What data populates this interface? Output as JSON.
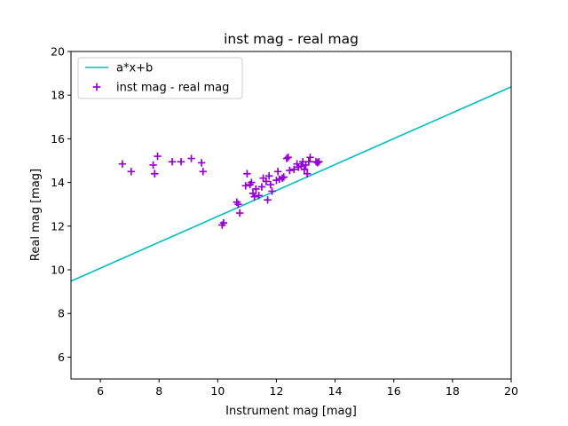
{
  "chart_data": {
    "type": "scatter",
    "title": "inst mag - real mag",
    "xlabel": "Instrument mag [mag]",
    "ylabel": "Real mag [mag]",
    "xlim": [
      5,
      20
    ],
    "ylim": [
      5,
      20
    ],
    "xticks": [
      "6",
      "8",
      "10",
      "12",
      "14",
      "16",
      "18",
      "20"
    ],
    "yticks": [
      "6",
      "8",
      "10",
      "12",
      "14",
      "16",
      "18",
      "20"
    ],
    "grid": false,
    "legend_position": "top-left",
    "fit_line": {
      "name": "a*x+b",
      "color": "#00bfbf",
      "x": [
        5,
        20
      ],
      "y": [
        9.48,
        18.38
      ]
    },
    "series": [
      {
        "name": "inst mag - real mag",
        "color": "#9400d3",
        "marker": "plus",
        "points": [
          [
            6.75,
            14.85
          ],
          [
            7.05,
            14.5
          ],
          [
            7.8,
            14.8
          ],
          [
            7.85,
            14.4
          ],
          [
            7.95,
            15.2
          ],
          [
            8.45,
            14.95
          ],
          [
            8.75,
            14.95
          ],
          [
            9.1,
            15.1
          ],
          [
            9.45,
            14.9
          ],
          [
            9.5,
            14.5
          ],
          [
            10.15,
            12.05
          ],
          [
            10.2,
            12.15
          ],
          [
            10.65,
            13.1
          ],
          [
            10.7,
            13.0
          ],
          [
            10.75,
            12.6
          ],
          [
            10.95,
            13.85
          ],
          [
            11.0,
            14.4
          ],
          [
            11.1,
            13.9
          ],
          [
            11.15,
            14.0
          ],
          [
            11.2,
            13.5
          ],
          [
            11.25,
            13.35
          ],
          [
            11.3,
            13.7
          ],
          [
            11.4,
            13.4
          ],
          [
            11.5,
            13.8
          ],
          [
            11.55,
            14.2
          ],
          [
            11.65,
            14.05
          ],
          [
            11.7,
            13.2
          ],
          [
            11.75,
            14.3
          ],
          [
            11.8,
            13.9
          ],
          [
            11.85,
            13.6
          ],
          [
            12.0,
            14.1
          ],
          [
            12.05,
            14.5
          ],
          [
            12.1,
            14.15
          ],
          [
            12.2,
            14.2
          ],
          [
            12.25,
            14.25
          ],
          [
            12.35,
            15.1
          ],
          [
            12.4,
            15.15
          ],
          [
            12.45,
            14.55
          ],
          [
            12.6,
            14.6
          ],
          [
            12.7,
            14.85
          ],
          [
            12.75,
            14.7
          ],
          [
            12.85,
            14.75
          ],
          [
            12.9,
            14.95
          ],
          [
            12.95,
            14.6
          ],
          [
            13.0,
            14.8
          ],
          [
            13.05,
            14.4
          ],
          [
            13.1,
            14.95
          ],
          [
            13.15,
            15.15
          ],
          [
            13.35,
            14.95
          ],
          [
            13.4,
            14.9
          ],
          [
            13.45,
            14.95
          ]
        ]
      }
    ]
  }
}
